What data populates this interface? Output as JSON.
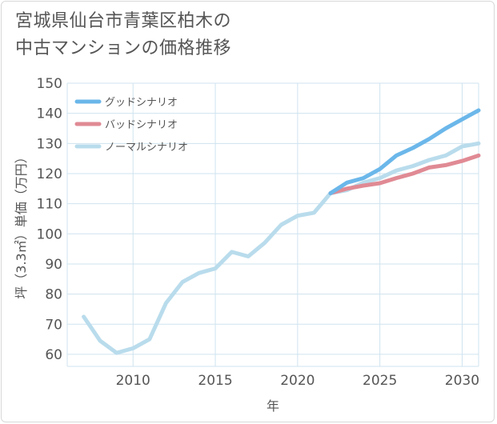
{
  "title_line1": "宮城県仙台市青葉区柏木の",
  "title_line2": "中古マンションの価格推移",
  "chart_data": {
    "type": "line",
    "xlabel": "年",
    "ylabel": "坪（3.3㎡）単価（万円）",
    "xlim": [
      2006,
      2031
    ],
    "ylim": [
      56,
      150
    ],
    "yticks": [
      60,
      70,
      80,
      90,
      100,
      110,
      120,
      130,
      140,
      150
    ],
    "xticks": [
      2010,
      2015,
      2020,
      2025,
      2030
    ],
    "grid": true,
    "legend_position": "top-left",
    "series": [
      {
        "name": "グッドシナリオ",
        "color": "#6bb7ea",
        "x": [
          2022,
          2023,
          2024,
          2025,
          2026,
          2027,
          2028,
          2029,
          2030,
          2031
        ],
        "y": [
          113.5,
          117,
          118.5,
          121.5,
          126,
          128.5,
          131.5,
          135,
          138,
          141
        ]
      },
      {
        "name": "バッドシナリオ",
        "color": "#e08a94",
        "x": [
          2022,
          2023,
          2024,
          2025,
          2026,
          2027,
          2028,
          2029,
          2030,
          2031
        ],
        "y": [
          113.5,
          115,
          116,
          116.8,
          118.5,
          120,
          122,
          122.8,
          124.2,
          126
        ]
      },
      {
        "name": "ノーマルシナリオ",
        "color": "#b9dcec",
        "x": [
          2007,
          2008,
          2009,
          2010,
          2011,
          2012,
          2013,
          2014,
          2015,
          2016,
          2017,
          2018,
          2019,
          2020,
          2021,
          2022,
          2023,
          2024,
          2025,
          2026,
          2027,
          2028,
          2029,
          2030,
          2031
        ],
        "y": [
          72.5,
          64.5,
          60.5,
          62,
          65,
          77,
          84,
          87,
          88.5,
          94,
          92.5,
          97,
          103,
          106,
          107,
          113.5,
          114.5,
          117,
          118.5,
          121,
          122.5,
          124.5,
          126,
          129,
          130
        ]
      }
    ]
  }
}
